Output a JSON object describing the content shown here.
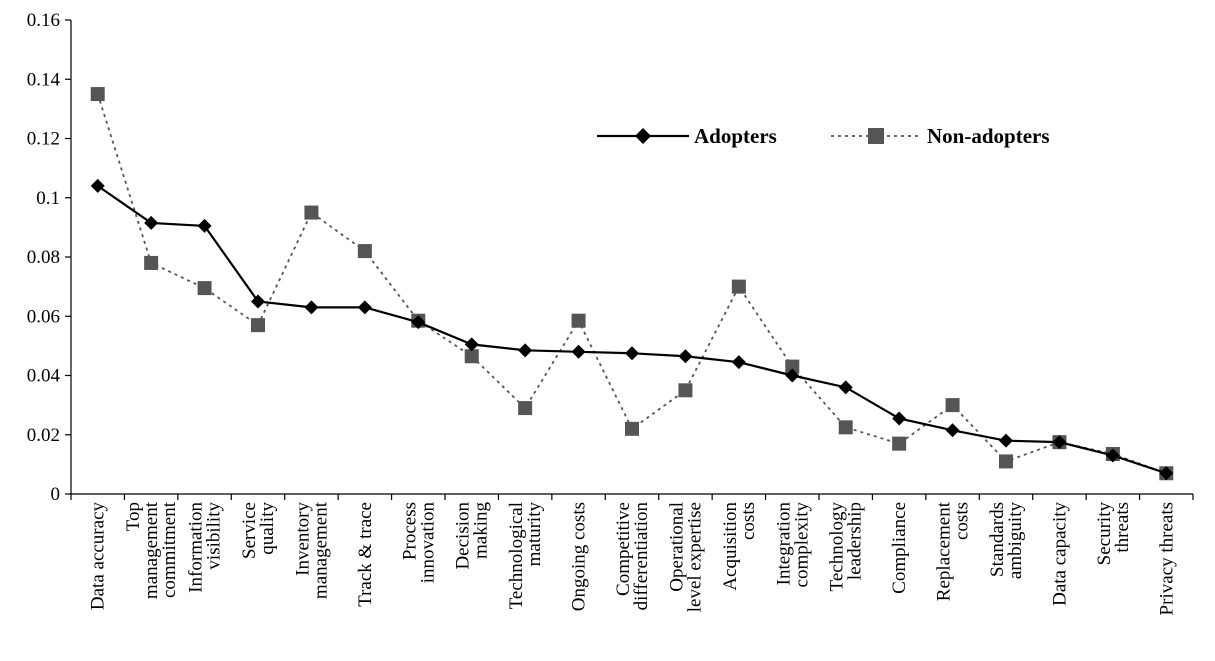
{
  "chart_data": {
    "type": "line",
    "title": "",
    "xlabel": "",
    "ylabel": "",
    "ylim": [
      0,
      0.16
    ],
    "yticks": [
      "0",
      "0.02",
      "0.04",
      "0.06",
      "0.08",
      "0.1",
      "0.12",
      "0.14",
      "0.16"
    ],
    "grid": false,
    "legend_position": "top-right",
    "categories": [
      [
        "Data accuracy"
      ],
      [
        "Top",
        "management",
        "commitment"
      ],
      [
        "Information",
        "visibility"
      ],
      [
        "Service",
        "quality"
      ],
      [
        "Inventory",
        "management"
      ],
      [
        "Track & trace"
      ],
      [
        "Process",
        "innovation"
      ],
      [
        "Decision",
        "making"
      ],
      [
        "Technological",
        "maturity"
      ],
      [
        "Ongoing costs"
      ],
      [
        "Competitive",
        "differentiation"
      ],
      [
        "Operational",
        "level expertise"
      ],
      [
        "Acquisition",
        "costs"
      ],
      [
        "Integration",
        "complexity"
      ],
      [
        "Technology",
        "leadership"
      ],
      [
        "Compliance"
      ],
      [
        "Replacement",
        "costs"
      ],
      [
        "Standards",
        "ambiguity"
      ],
      [
        "Data capacity"
      ],
      [
        "Security",
        "threats"
      ],
      [
        "Privacy threats"
      ]
    ],
    "series": [
      {
        "name": "Adopters",
        "color": "#000000",
        "marker": "diamond",
        "line_style": "solid",
        "values": [
          0.104,
          0.0915,
          0.0905,
          0.065,
          0.063,
          0.063,
          0.058,
          0.0505,
          0.0485,
          0.048,
          0.0475,
          0.0465,
          0.0445,
          0.04,
          0.036,
          0.0255,
          0.0215,
          0.018,
          0.0175,
          0.013,
          0.007
        ]
      },
      {
        "name": "Non-adopters",
        "color": "#555555",
        "marker": "square",
        "line_style": "dotted",
        "values": [
          0.135,
          0.078,
          0.0695,
          0.057,
          0.095,
          0.082,
          0.0585,
          0.0465,
          0.029,
          0.0585,
          0.022,
          0.035,
          0.07,
          0.043,
          0.0225,
          0.017,
          0.03,
          0.011,
          0.0175,
          0.0135,
          0.007
        ]
      }
    ]
  }
}
